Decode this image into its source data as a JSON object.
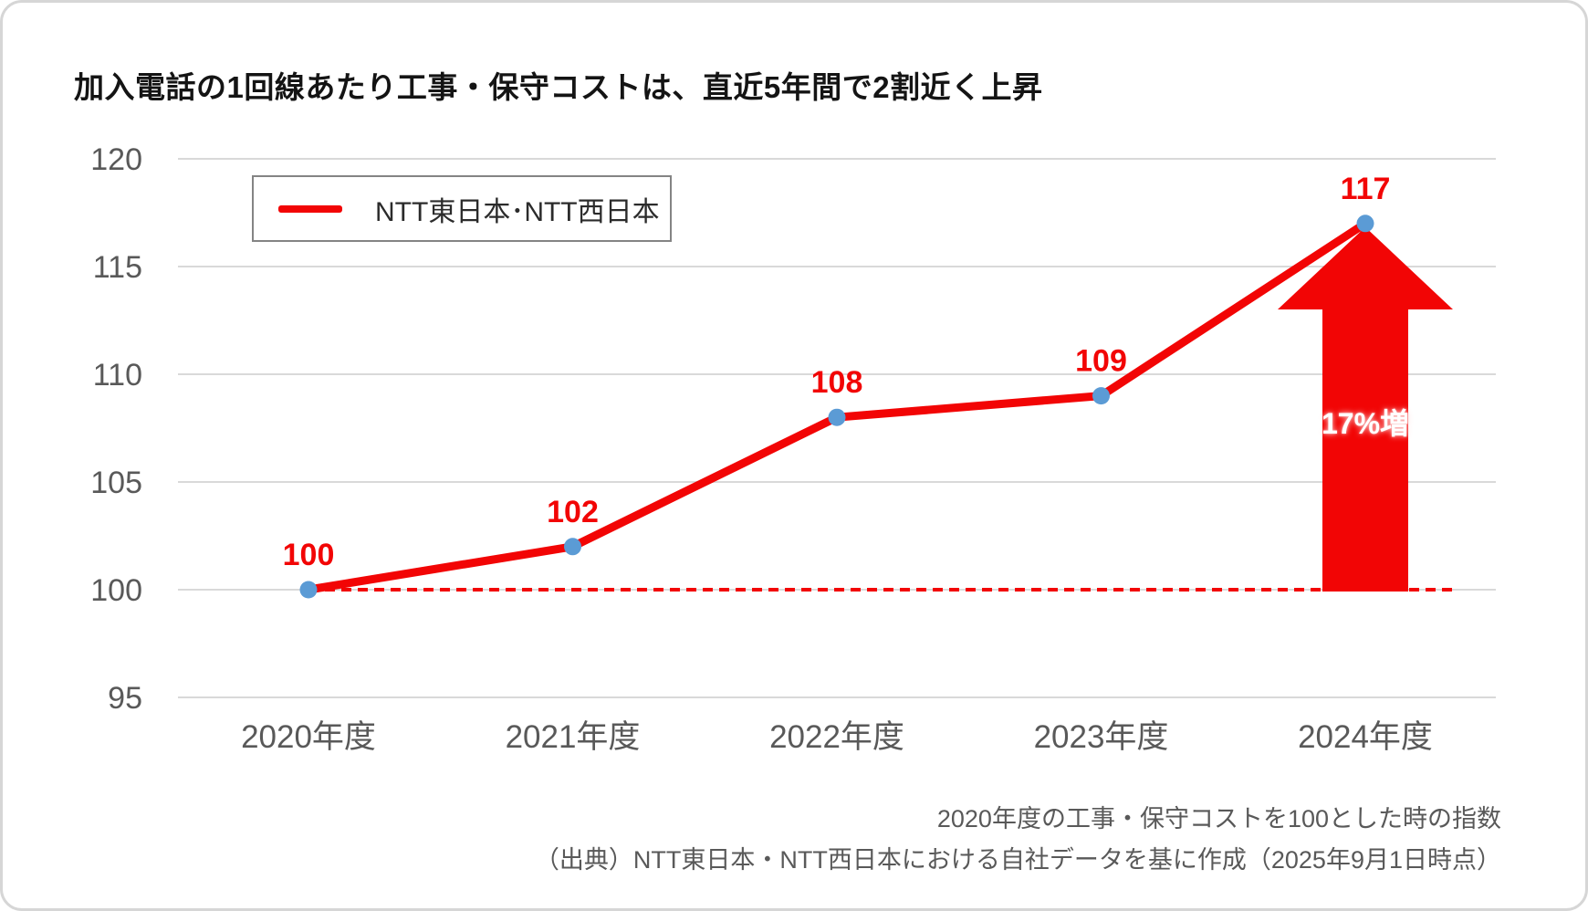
{
  "title": "加入電話の1回線あたり工事・保守コストは、直近5年間で2割近く上昇",
  "legend": {
    "label": "NTT東日本･NTT西日本"
  },
  "annotation": {
    "arrow_label": "17%増"
  },
  "footnotes": {
    "line1": "2020年度の工事・保守コストを100とした時の指数",
    "line2": "（出典）NTT東日本・NTT西日本における自社データを基に作成（2025年9月1日時点）"
  },
  "chart_data": {
    "type": "line",
    "categories": [
      "2020年度",
      "2021年度",
      "2022年度",
      "2023年度",
      "2024年度"
    ],
    "series": [
      {
        "name": "NTT東日本･NTT西日本",
        "values": [
          100,
          102,
          108,
          109,
          117
        ]
      }
    ],
    "point_labels": [
      "100",
      "102",
      "108",
      "109",
      "117"
    ],
    "yticks": [
      95,
      100,
      105,
      110,
      115,
      120
    ],
    "ylim": [
      95,
      121
    ],
    "baseline_value": 100,
    "grid": true,
    "legend_position": "top-left-inside",
    "increase_annotation": {
      "text": "17%増",
      "at_category": "2024年度",
      "from_value": 100,
      "to_value": 117
    },
    "colors": {
      "line": "#f20505",
      "marker": "#5b9bd5",
      "grid": "#d9d9d9",
      "axis_text": "#595959",
      "data_label": "#f20505",
      "arrow": "#f20505",
      "arrow_text": "#ffffff"
    }
  }
}
